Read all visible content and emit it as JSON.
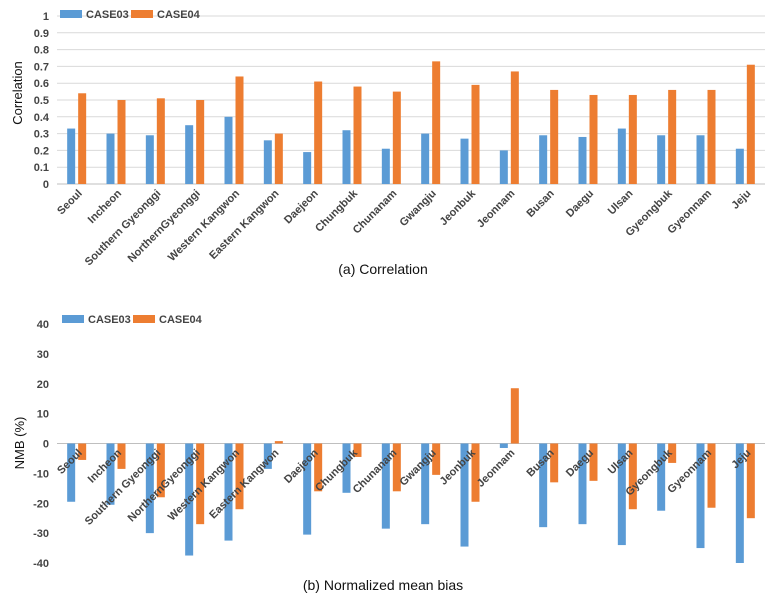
{
  "colors": {
    "case03": "#5b9bd5",
    "case04": "#ed7d31",
    "grid": "#d9d9d9",
    "axis": "#bfbfbf"
  },
  "chart_data": [
    {
      "type": "bar",
      "title": "",
      "caption": "(a) Correlation",
      "xlabel": "",
      "ylabel": "Correlation",
      "ylim": [
        0,
        1
      ],
      "yticks": [
        0,
        0.1,
        0.2,
        0.3,
        0.4,
        0.5,
        0.6,
        0.7,
        0.8,
        0.9,
        1
      ],
      "ytick_labels": [
        "0",
        "0.1",
        "0.2",
        "0.3",
        "0.4",
        "0.5",
        "0.6",
        "0.7",
        "0.8",
        "0.9",
        "1"
      ],
      "grid": true,
      "legend": "top-left",
      "categories": [
        "Seoul",
        "Incheon",
        "Southern Gyeonggi",
        "NorthernGyeonggi",
        "Western Kangwon",
        "Eastern Kangwon",
        "Daejeon",
        "Chungbuk",
        "Chunanam",
        "Gwangju",
        "Jeonbuk",
        "Jeonnam",
        "Busan",
        "Daegu",
        "Ulsan",
        "Gyeongbuk",
        "Gyeonnam",
        "Jeju"
      ],
      "series": [
        {
          "name": "CASE03",
          "values": [
            0.33,
            0.3,
            0.29,
            0.35,
            0.4,
            0.26,
            0.19,
            0.32,
            0.21,
            0.3,
            0.27,
            0.2,
            0.29,
            0.28,
            0.33,
            0.29,
            0.29,
            0.21
          ]
        },
        {
          "name": "CASE04",
          "values": [
            0.54,
            0.5,
            0.51,
            0.5,
            0.64,
            0.3,
            0.61,
            0.58,
            0.55,
            0.73,
            0.59,
            0.67,
            0.56,
            0.53,
            0.53,
            0.56,
            0.56,
            0.71
          ]
        }
      ]
    },
    {
      "type": "bar",
      "title": "",
      "caption": "(b) Normalized mean bias",
      "xlabel": "",
      "ylabel": "NMB (%)",
      "ylim": [
        -40,
        40
      ],
      "yticks": [
        -40,
        -30,
        -20,
        -10,
        0,
        10,
        20,
        30,
        40
      ],
      "ytick_labels": [
        "-40",
        "-30",
        "-20",
        "-10",
        "0",
        "10",
        "20",
        "30",
        "40"
      ],
      "grid": false,
      "legend": "top-left",
      "categories": [
        "Seoul",
        "Incheon",
        "Southern Gyeonggi",
        "NorthernGyeonggi",
        "Western Kangwon",
        "Eastern Kangwon",
        "Daejeon",
        "Chungbuk",
        "Chunanam",
        "Gwangju",
        "Jeonbuk",
        "Jeonnam",
        "Busan",
        "Daegu",
        "Ulsan",
        "Gyeongbuk",
        "Gyeonnam",
        "Jeju"
      ],
      "series": [
        {
          "name": "CASE03",
          "values": [
            -19.5,
            -20.5,
            -30,
            -37.5,
            -32.5,
            -8.5,
            -30.5,
            -16.5,
            -28.5,
            -27,
            -34.5,
            -1.5,
            -28,
            -27,
            -34,
            -22.5,
            -35,
            -40
          ]
        },
        {
          "name": "CASE04",
          "values": [
            -5.5,
            -8.5,
            -18,
            -27,
            -22,
            0.8,
            -16,
            -4.5,
            -16,
            -10.5,
            -19.5,
            18.5,
            -13,
            -12.5,
            -22,
            -6.5,
            -21.5,
            -25
          ]
        }
      ]
    }
  ]
}
